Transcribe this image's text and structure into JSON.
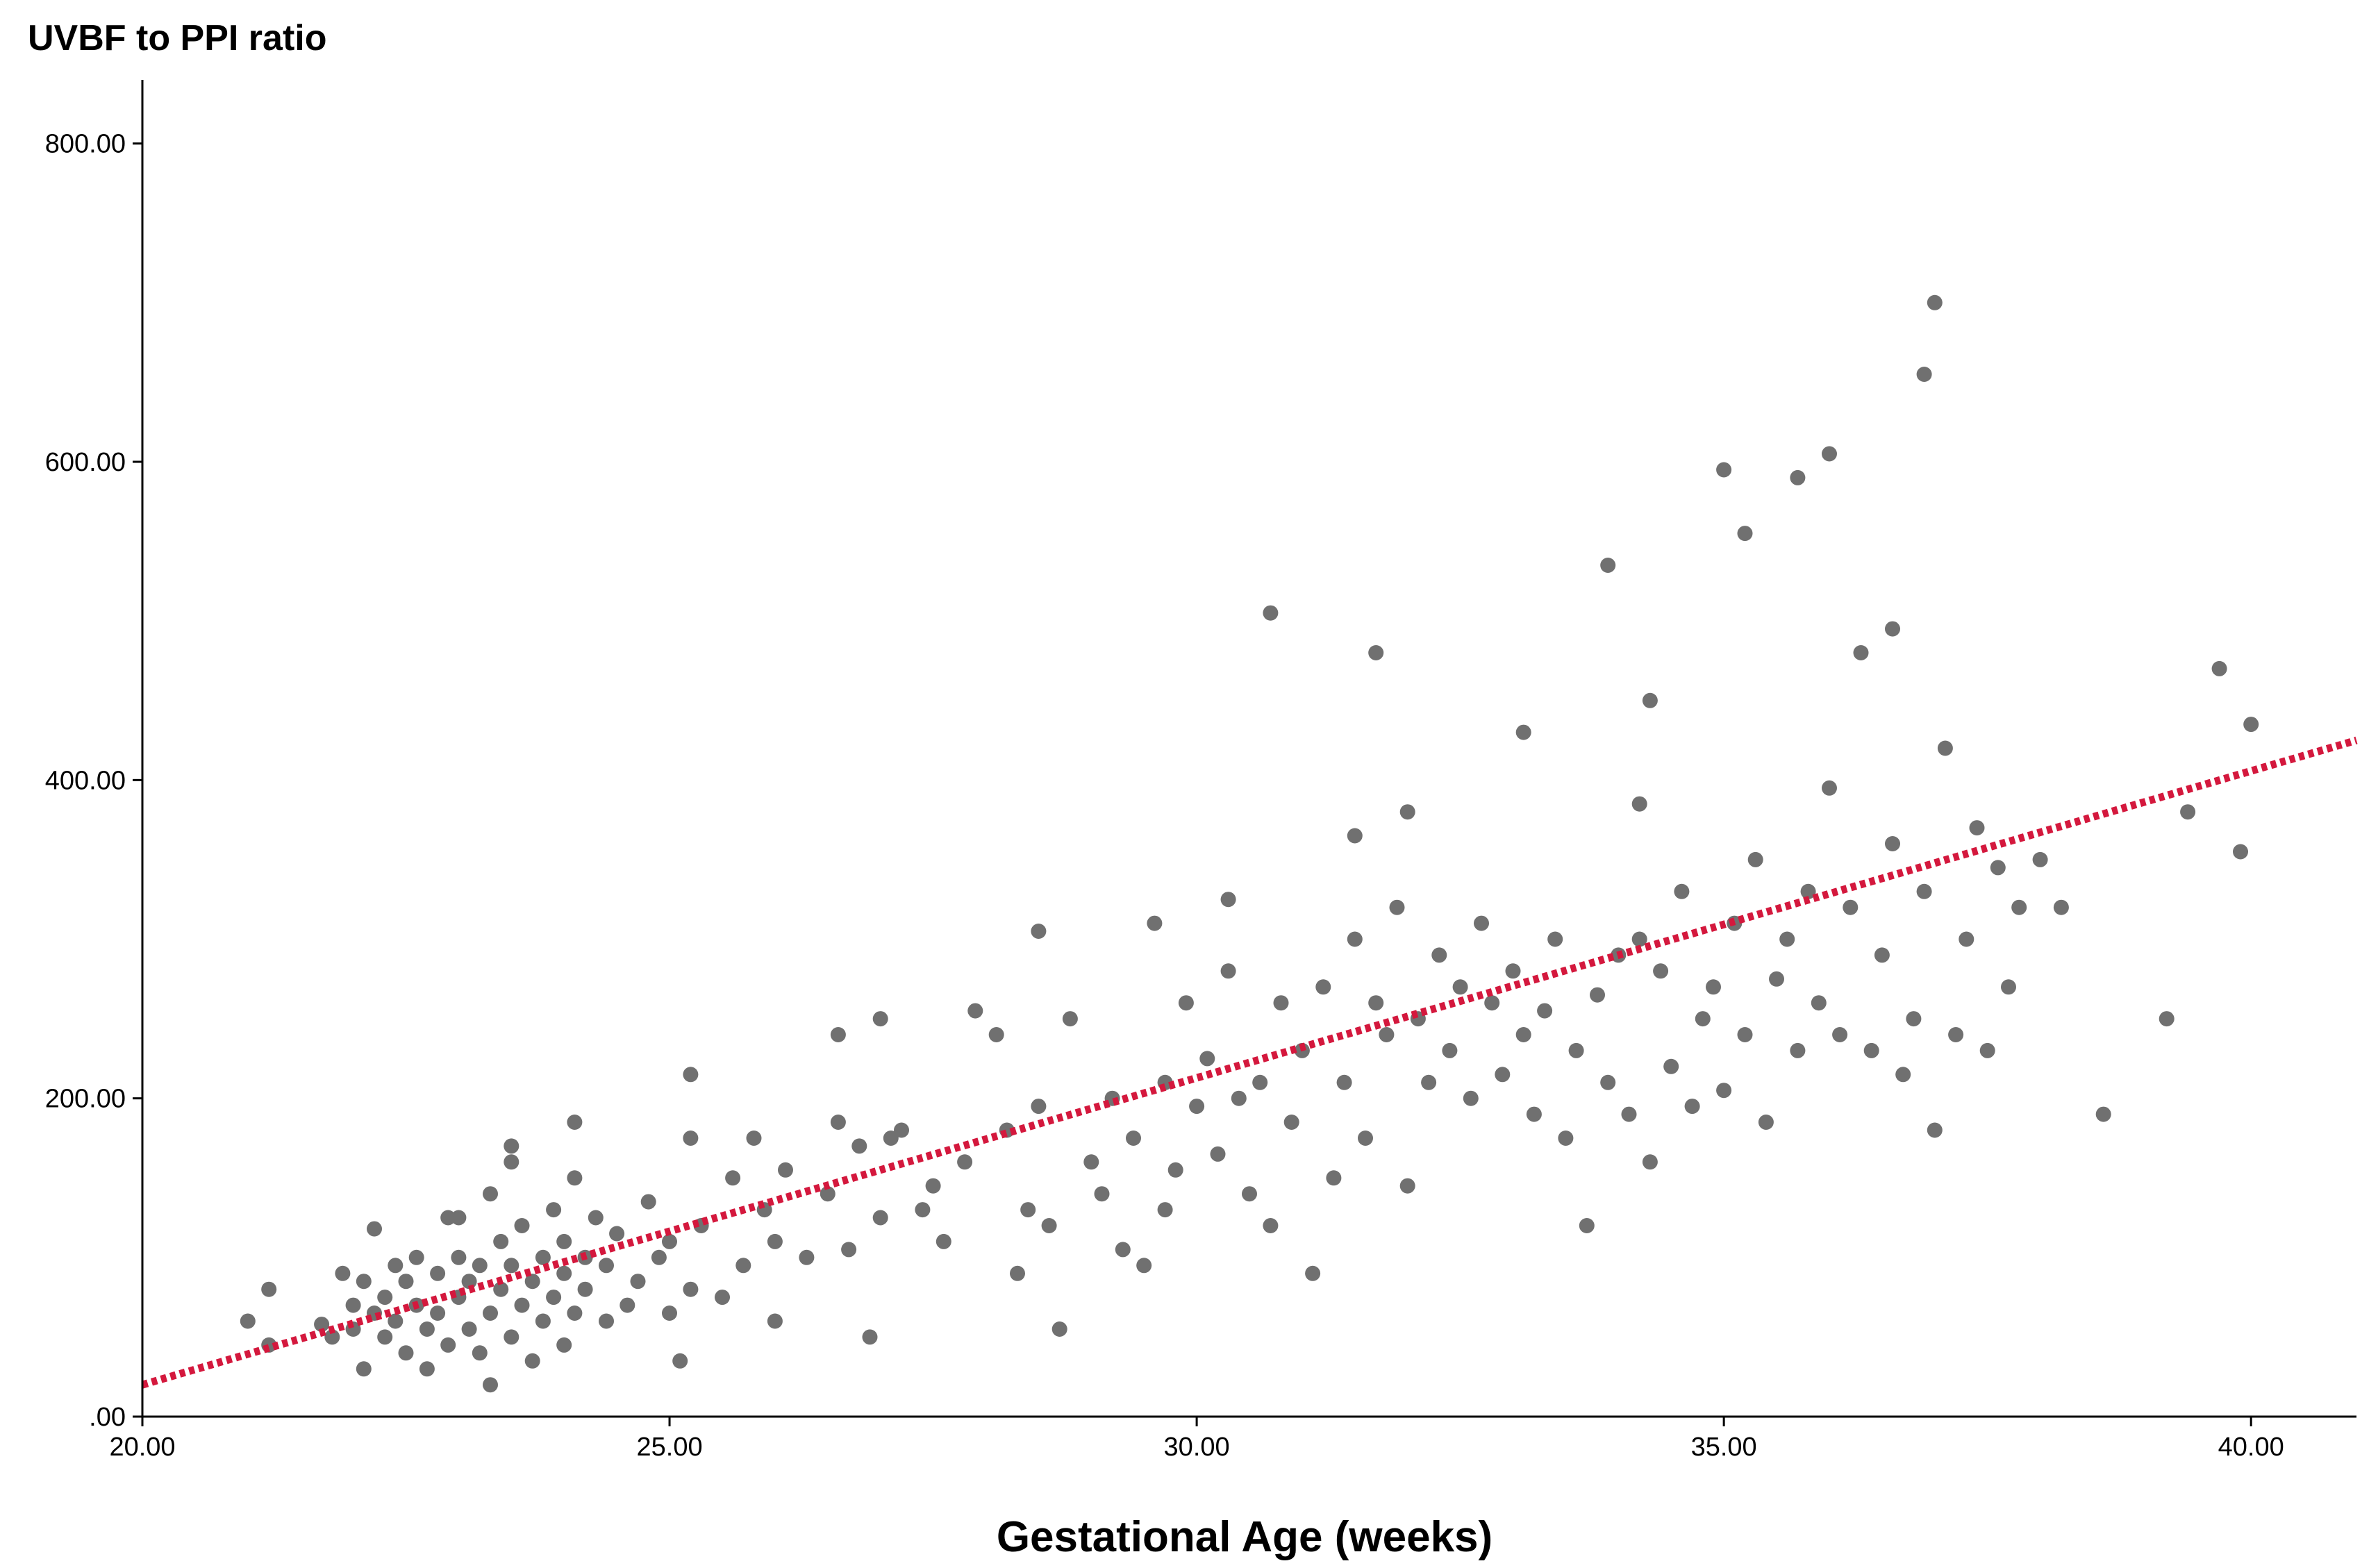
{
  "chart_data": {
    "type": "scatter",
    "title": "",
    "ylabel": "UVBF to PPI ratio",
    "xlabel": "Gestational Age (weeks)",
    "xlim": [
      20,
      41
    ],
    "ylim": [
      0,
      840
    ],
    "x_ticks": [
      20,
      25,
      30,
      35,
      40
    ],
    "x_tick_labels": [
      "20.00",
      "25.00",
      "30.00",
      "35.00",
      "40.00"
    ],
    "y_ticks": [
      0,
      200,
      400,
      600,
      800
    ],
    "y_tick_labels": [
      ".00",
      "200.00",
      "400.00",
      "600.00",
      "800.00"
    ],
    "grid": false,
    "point_color": "#707070",
    "fit_line_color": "#D4183D",
    "fit_line": {
      "style": "dotted",
      "x": [
        20,
        41
      ],
      "y": [
        20,
        425
      ]
    },
    "series": [
      {
        "points": [
          [
            21.0,
            60
          ],
          [
            21.2,
            80
          ],
          [
            21.2,
            45
          ],
          [
            21.7,
            58
          ],
          [
            21.8,
            50
          ],
          [
            21.9,
            90
          ],
          [
            22.0,
            70
          ],
          [
            22.0,
            55
          ],
          [
            22.1,
            85
          ],
          [
            22.1,
            30
          ],
          [
            22.2,
            65
          ],
          [
            22.2,
            118
          ],
          [
            22.3,
            50
          ],
          [
            22.3,
            75
          ],
          [
            22.4,
            95
          ],
          [
            22.4,
            60
          ],
          [
            22.5,
            40
          ],
          [
            22.5,
            85
          ],
          [
            22.6,
            70
          ],
          [
            22.6,
            100
          ],
          [
            22.7,
            55
          ],
          [
            22.7,
            30
          ],
          [
            22.8,
            90
          ],
          [
            22.8,
            65
          ],
          [
            22.9,
            45
          ],
          [
            23.0,
            75
          ],
          [
            23.0,
            100
          ],
          [
            23.0,
            125
          ],
          [
            23.1,
            55
          ],
          [
            23.1,
            85
          ],
          [
            23.2,
            40
          ],
          [
            23.2,
            95
          ],
          [
            23.3,
            65
          ],
          [
            23.3,
            140
          ],
          [
            23.3,
            20
          ],
          [
            23.4,
            110
          ],
          [
            23.4,
            80
          ],
          [
            23.5,
            160
          ],
          [
            23.5,
            50
          ],
          [
            23.5,
            95
          ],
          [
            23.6,
            70
          ],
          [
            23.6,
            120
          ],
          [
            23.7,
            85
          ],
          [
            23.7,
            35
          ],
          [
            23.8,
            100
          ],
          [
            23.8,
            60
          ],
          [
            23.9,
            130
          ],
          [
            23.9,
            75
          ],
          [
            24.0,
            90
          ],
          [
            24.0,
            45
          ],
          [
            24.0,
            110
          ],
          [
            24.1,
            65
          ],
          [
            24.1,
            185
          ],
          [
            24.2,
            100
          ],
          [
            24.2,
            80
          ],
          [
            24.3,
            125
          ],
          [
            24.4,
            60
          ],
          [
            24.4,
            95
          ],
          [
            24.5,
            115
          ],
          [
            24.6,
            70
          ],
          [
            24.7,
            85
          ],
          [
            24.8,
            135
          ],
          [
            24.9,
            100
          ],
          [
            25.0,
            65
          ],
          [
            25.0,
            110
          ],
          [
            25.1,
            35
          ],
          [
            25.2,
            80
          ],
          [
            25.3,
            120
          ],
          [
            25.5,
            75
          ],
          [
            25.6,
            150
          ],
          [
            25.7,
            95
          ],
          [
            25.8,
            175
          ],
          [
            25.9,
            130
          ],
          [
            26.0,
            60
          ],
          [
            26.0,
            110
          ],
          [
            26.1,
            155
          ],
          [
            25.2,
            215
          ],
          [
            26.3,
            100
          ],
          [
            26.5,
            140
          ],
          [
            26.6,
            240
          ],
          [
            26.7,
            105
          ],
          [
            26.8,
            170
          ],
          [
            26.9,
            50
          ],
          [
            27.0,
            125
          ],
          [
            27.1,
            175
          ],
          [
            27.2,
            180
          ],
          [
            27.4,
            130
          ],
          [
            27.5,
            145
          ],
          [
            27.6,
            110
          ],
          [
            27.8,
            160
          ],
          [
            27.9,
            255
          ],
          [
            28.1,
            240
          ],
          [
            28.2,
            180
          ],
          [
            28.3,
            90
          ],
          [
            28.4,
            130
          ],
          [
            28.5,
            195
          ],
          [
            28.6,
            120
          ],
          [
            28.7,
            55
          ],
          [
            28.8,
            250
          ],
          [
            29.0,
            160
          ],
          [
            29.1,
            140
          ],
          [
            29.2,
            200
          ],
          [
            29.3,
            105
          ],
          [
            29.4,
            175
          ],
          [
            29.5,
            95
          ],
          [
            29.6,
            310
          ],
          [
            29.7,
            130
          ],
          [
            29.8,
            155
          ],
          [
            29.9,
            260
          ],
          [
            30.0,
            195
          ],
          [
            30.1,
            225
          ],
          [
            30.2,
            165
          ],
          [
            30.3,
            280
          ],
          [
            30.4,
            200
          ],
          [
            30.5,
            140
          ],
          [
            30.6,
            210
          ],
          [
            30.7,
            120
          ],
          [
            30.8,
            260
          ],
          [
            30.9,
            185
          ],
          [
            31.0,
            230
          ],
          [
            31.1,
            90
          ],
          [
            31.2,
            270
          ],
          [
            31.3,
            150
          ],
          [
            31.4,
            210
          ],
          [
            31.5,
            300
          ],
          [
            31.6,
            175
          ],
          [
            31.7,
            260
          ],
          [
            31.8,
            240
          ],
          [
            31.9,
            320
          ],
          [
            32.0,
            145
          ],
          [
            32.1,
            250
          ],
          [
            32.2,
            210
          ],
          [
            32.3,
            290
          ],
          [
            32.4,
            230
          ],
          [
            32.5,
            270
          ],
          [
            32.6,
            200
          ],
          [
            32.7,
            310
          ],
          [
            32.8,
            260
          ],
          [
            32.9,
            215
          ],
          [
            33.0,
            280
          ],
          [
            33.1,
            240
          ],
          [
            33.2,
            190
          ],
          [
            33.3,
            255
          ],
          [
            33.4,
            300
          ],
          [
            33.5,
            175
          ],
          [
            33.6,
            230
          ],
          [
            33.7,
            120
          ],
          [
            33.8,
            265
          ],
          [
            33.9,
            210
          ],
          [
            34.0,
            290
          ],
          [
            34.1,
            190
          ],
          [
            34.2,
            300
          ],
          [
            34.3,
            160
          ],
          [
            34.4,
            280
          ],
          [
            34.5,
            220
          ],
          [
            34.6,
            330
          ],
          [
            34.7,
            195
          ],
          [
            34.8,
            250
          ],
          [
            34.9,
            270
          ],
          [
            35.0,
            205
          ],
          [
            35.1,
            310
          ],
          [
            35.2,
            240
          ],
          [
            35.3,
            350
          ],
          [
            35.4,
            185
          ],
          [
            35.5,
            275
          ],
          [
            35.6,
            300
          ],
          [
            35.7,
            230
          ],
          [
            35.8,
            330
          ],
          [
            35.9,
            260
          ],
          [
            36.0,
            395
          ],
          [
            36.1,
            240
          ],
          [
            36.2,
            320
          ],
          [
            36.3,
            480
          ],
          [
            36.4,
            230
          ],
          [
            36.5,
            290
          ],
          [
            36.6,
            360
          ],
          [
            36.7,
            215
          ],
          [
            36.8,
            250
          ],
          [
            36.9,
            330
          ],
          [
            37.0,
            180
          ],
          [
            37.1,
            420
          ],
          [
            37.2,
            240
          ],
          [
            37.3,
            300
          ],
          [
            37.4,
            370
          ],
          [
            37.5,
            230
          ],
          [
            37.6,
            345
          ],
          [
            37.7,
            270
          ],
          [
            37.8,
            320
          ],
          [
            38.0,
            350
          ],
          [
            38.2,
            320
          ],
          [
            38.6,
            190
          ],
          [
            39.2,
            250
          ],
          [
            39.4,
            380
          ],
          [
            39.7,
            470
          ],
          [
            39.9,
            355
          ],
          [
            40.0,
            435
          ],
          [
            30.7,
            505
          ],
          [
            31.7,
            480
          ],
          [
            33.1,
            430
          ],
          [
            33.9,
            535
          ],
          [
            34.3,
            450
          ],
          [
            35.0,
            595
          ],
          [
            35.2,
            555
          ],
          [
            35.7,
            590
          ],
          [
            36.0,
            605
          ],
          [
            36.6,
            495
          ],
          [
            36.9,
            655
          ],
          [
            37.0,
            700
          ],
          [
            34.2,
            385
          ],
          [
            31.5,
            365
          ],
          [
            30.3,
            325
          ],
          [
            28.5,
            305
          ],
          [
            27.0,
            250
          ],
          [
            25.2,
            175
          ],
          [
            24.1,
            150
          ],
          [
            23.5,
            170
          ],
          [
            22.9,
            125
          ],
          [
            26.6,
            185
          ],
          [
            29.7,
            210
          ],
          [
            32.0,
            380
          ]
        ]
      }
    ]
  }
}
